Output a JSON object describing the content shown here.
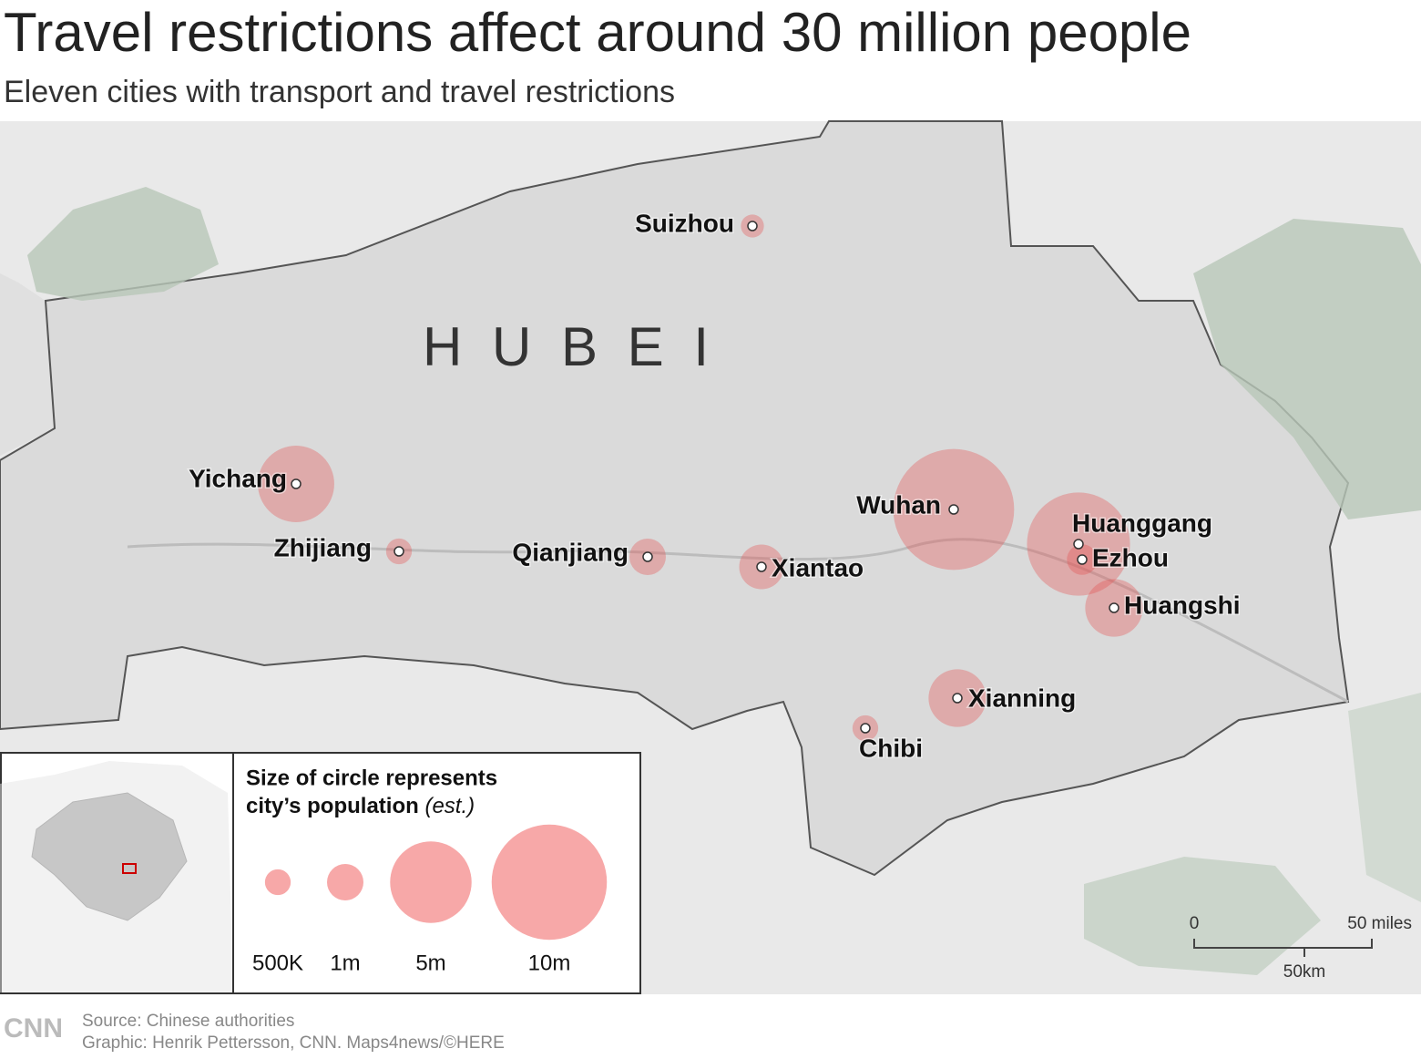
{
  "title": "Travel restrictions affect around 30 million people",
  "subtitle": "Eleven cities with transport and travel restrictions",
  "region_label": "H U B E I",
  "cities": [
    {
      "name": "Suizhou",
      "population": 0.4
    },
    {
      "name": "Yichang",
      "population": 4.4
    },
    {
      "name": "Zhijiang",
      "population": 0.5
    },
    {
      "name": "Qianjiang",
      "population": 1
    },
    {
      "name": "Xiantao",
      "population": 1.5
    },
    {
      "name": "Wuhan",
      "population": 11
    },
    {
      "name": "Huanggang",
      "population": 8
    },
    {
      "name": "Ezhou",
      "population": 0.7
    },
    {
      "name": "Huangshi",
      "population": 2.5
    },
    {
      "name": "Xianning",
      "population": 2.5
    },
    {
      "name": "Chibi",
      "population": 0.5
    }
  ],
  "legend": {
    "title_line1": "Size of circle represents",
    "title_line2": "city’s population",
    "title_note": "(est.)",
    "items": [
      {
        "value": 0.5,
        "label": "500K"
      },
      {
        "value": 1,
        "label": "1m"
      },
      {
        "value": 5,
        "label": "5m"
      },
      {
        "value": 10,
        "label": "10m"
      }
    ]
  },
  "scale": {
    "zero": "0",
    "miles": "50 miles",
    "km": "50km"
  },
  "footer": {
    "logo": "CNN",
    "source": "Source: Chinese authorities",
    "credit": "Graphic: Henrik Pettersson, CNN. Maps4news/©HERE"
  }
}
